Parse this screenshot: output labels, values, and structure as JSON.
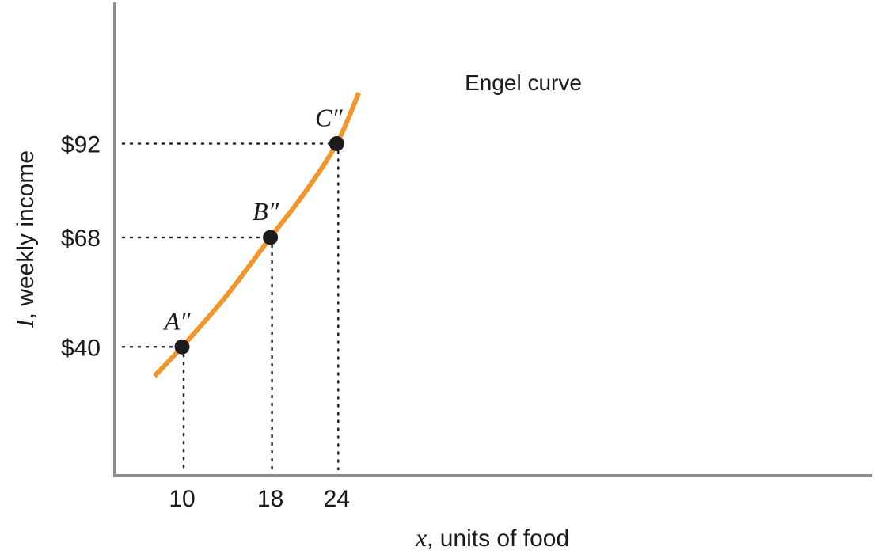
{
  "chart_data": {
    "type": "line",
    "title": "",
    "curve_label": "Engel curve",
    "curve_color": "#f0962a",
    "xlabel": {
      "var": "x",
      "text": ", units of food"
    },
    "ylabel": {
      "var": "I",
      "text": ", weekly income"
    },
    "x_ticks": [
      {
        "value": 10,
        "label": "10"
      },
      {
        "value": 18,
        "label": "18"
      },
      {
        "value": 24,
        "label": "24"
      }
    ],
    "y_ticks": [
      {
        "value": 40,
        "label": "$40"
      },
      {
        "value": 68,
        "label": "$68"
      },
      {
        "value": 92,
        "label": "$92"
      }
    ],
    "points": [
      {
        "name": "A''",
        "x": 10,
        "y": 40
      },
      {
        "name": "B''",
        "x": 18,
        "y": 68
      },
      {
        "name": "C''",
        "x": 24,
        "y": 92
      }
    ],
    "curve": [
      {
        "x": 7.5,
        "y": 32.5
      },
      {
        "x": 10,
        "y": 40
      },
      {
        "x": 14,
        "y": 53
      },
      {
        "x": 18,
        "y": 68
      },
      {
        "x": 21,
        "y": 79
      },
      {
        "x": 24,
        "y": 92
      },
      {
        "x": 26,
        "y": 105
      }
    ],
    "grid": false,
    "guides": "dotted"
  }
}
